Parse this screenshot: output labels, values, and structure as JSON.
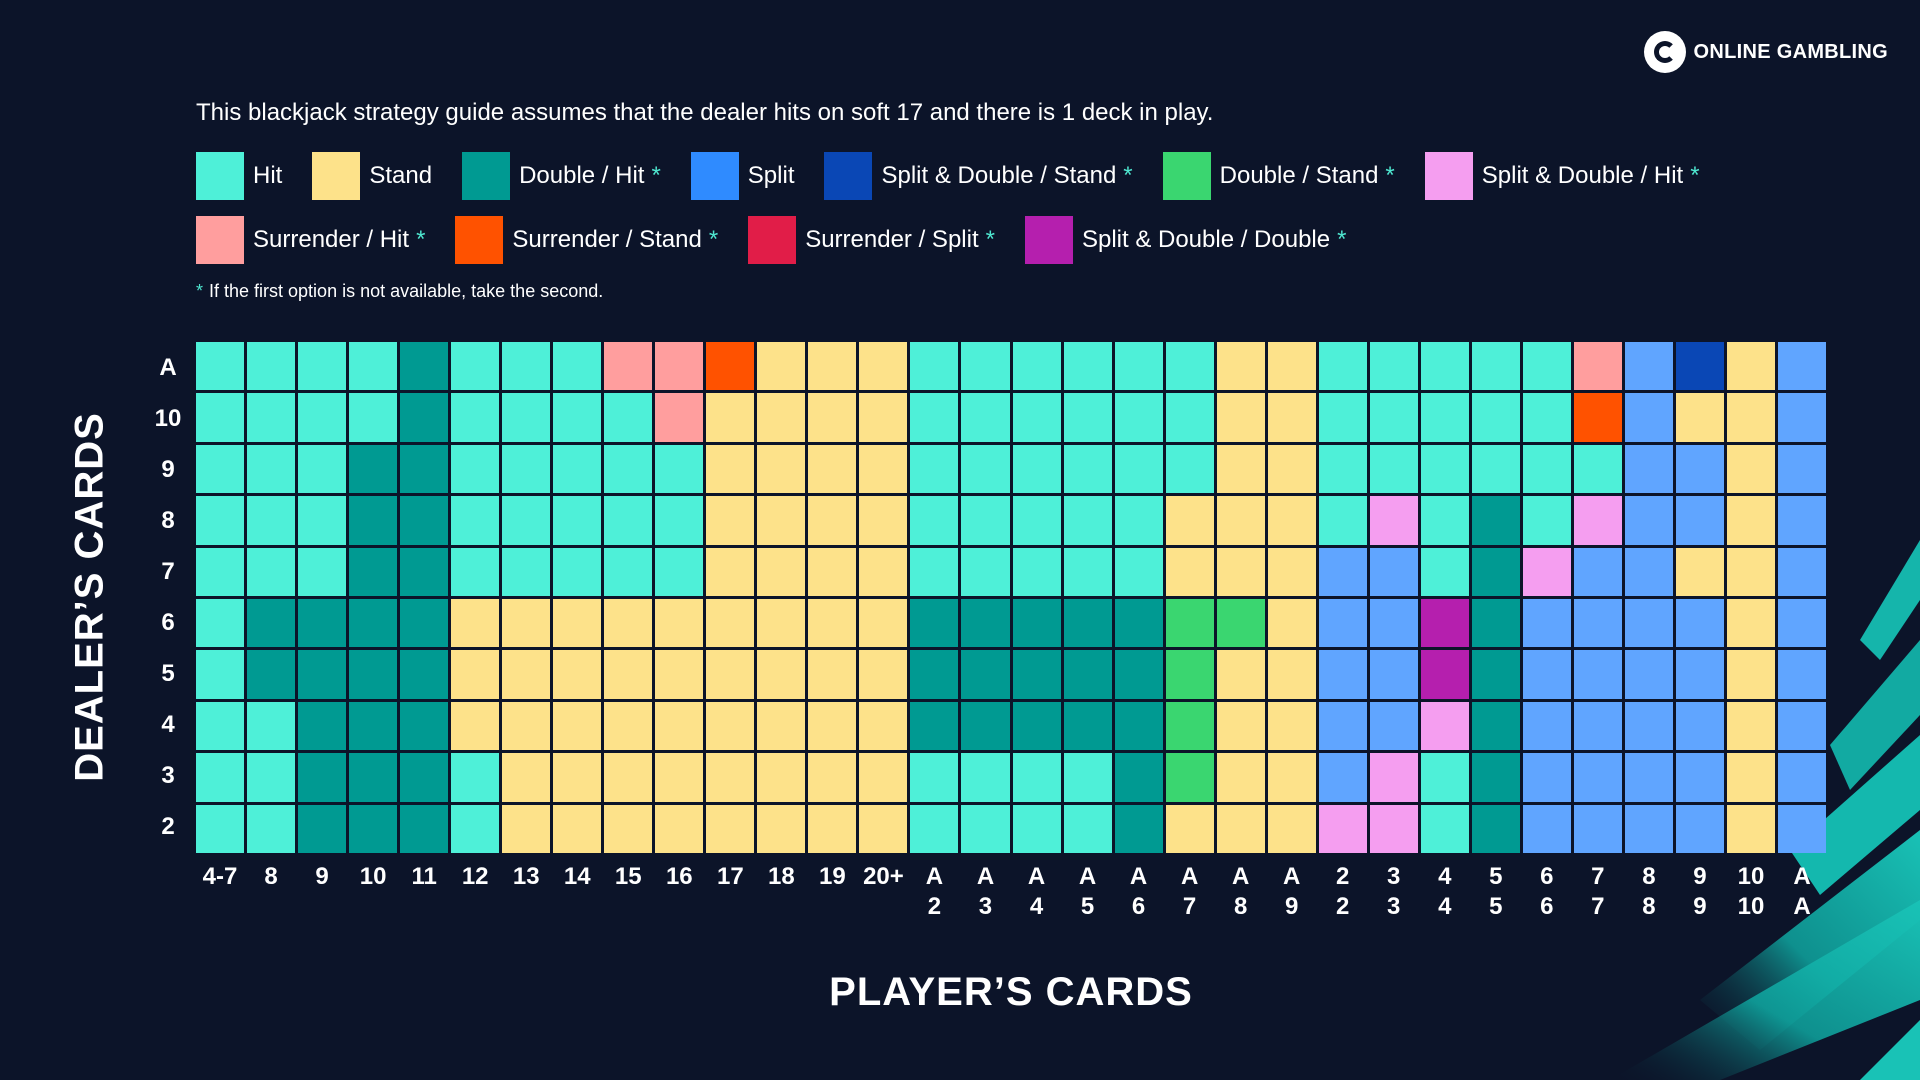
{
  "brand": {
    "name": "ONLINE GAMBLING",
    "icon": "g-logo-icon"
  },
  "intro_text": "This blackjack strategy guide assumes that the dealer hits on soft 17 and there is 1 deck in play.",
  "footnote": {
    "star": "*",
    "text": "If the first option is not available, take the second."
  },
  "legend": [
    {
      "key": "H",
      "label": "Hit",
      "color": "#4ef0d8",
      "asterisk": false
    },
    {
      "key": "S",
      "label": "Stand",
      "color": "#fde28a",
      "asterisk": false
    },
    {
      "key": "D",
      "label": "Double / Hit",
      "color": "#009a92",
      "asterisk": true
    },
    {
      "key": "P",
      "label": "Split",
      "color": "#2f8bff",
      "asterisk": false
    },
    {
      "key": "PS",
      "label": "Split & Double / Stand",
      "color": "#0a47b5",
      "asterisk": true
    },
    {
      "key": "DS",
      "label": "Double / Stand",
      "color": "#3ad670",
      "asterisk": true
    },
    {
      "key": "PH",
      "label": "Split & Double / Hit",
      "color": "#f59ef0",
      "asterisk": true
    },
    {
      "key": "RH",
      "label": "Surrender / Hit",
      "color": "#ff9e9e",
      "asterisk": true
    },
    {
      "key": "RS",
      "label": "Surrender / Stand",
      "color": "#ff5200",
      "asterisk": true
    },
    {
      "key": "RP",
      "label": "Surrender / Split",
      "color": "#e11d48",
      "asterisk": true
    },
    {
      "key": "PD",
      "label": "Split & Double / Double",
      "color": "#b51fae",
      "asterisk": true
    }
  ],
  "chart_data": {
    "type": "heatmap",
    "title": "",
    "xlabel": "PLAYER’S CARDS",
    "ylabel": "DEALER’S CARDS",
    "x_categories": [
      "4-7",
      "8",
      "9",
      "10",
      "11",
      "12",
      "13",
      "14",
      "15",
      "16",
      "17",
      "18",
      "19",
      "20+",
      "A\n2",
      "A\n3",
      "A\n4",
      "A\n5",
      "A\n6",
      "A\n7",
      "A\n8",
      "A\n9",
      "2\n2",
      "3\n3",
      "4\n4",
      "5\n5",
      "6\n6",
      "7\n7",
      "8\n8",
      "9\n9",
      "10\n10",
      "A\nA"
    ],
    "y_categories": [
      "A",
      "10",
      "9",
      "8",
      "7",
      "6",
      "5",
      "4",
      "3",
      "2"
    ],
    "grid_color": "#0c1429",
    "split_color_light": "#60a5ff",
    "values": [
      [
        "H",
        "H",
        "H",
        "H",
        "D",
        "H",
        "H",
        "H",
        "RH",
        "RH",
        "RS",
        "S",
        "S",
        "S",
        "H",
        "H",
        "H",
        "H",
        "H",
        "H",
        "S",
        "S",
        "H",
        "H",
        "H",
        "H",
        "H",
        "RH",
        "P",
        "PS",
        "S",
        "P"
      ],
      [
        "H",
        "H",
        "H",
        "H",
        "D",
        "H",
        "H",
        "H",
        "H",
        "RH",
        "S",
        "S",
        "S",
        "S",
        "H",
        "H",
        "H",
        "H",
        "H",
        "H",
        "S",
        "S",
        "H",
        "H",
        "H",
        "H",
        "H",
        "RS",
        "P",
        "S",
        "S",
        "P"
      ],
      [
        "H",
        "H",
        "H",
        "D",
        "D",
        "H",
        "H",
        "H",
        "H",
        "H",
        "S",
        "S",
        "S",
        "S",
        "H",
        "H",
        "H",
        "H",
        "H",
        "H",
        "S",
        "S",
        "H",
        "H",
        "H",
        "H",
        "H",
        "H",
        "P",
        "P",
        "S",
        "P"
      ],
      [
        "H",
        "H",
        "H",
        "D",
        "D",
        "H",
        "H",
        "H",
        "H",
        "H",
        "S",
        "S",
        "S",
        "S",
        "H",
        "H",
        "H",
        "H",
        "H",
        "S",
        "S",
        "S",
        "H",
        "PH",
        "H",
        "D",
        "H",
        "PH",
        "P",
        "P",
        "S",
        "P"
      ],
      [
        "H",
        "H",
        "H",
        "D",
        "D",
        "H",
        "H",
        "H",
        "H",
        "H",
        "S",
        "S",
        "S",
        "S",
        "H",
        "H",
        "H",
        "H",
        "H",
        "S",
        "S",
        "S",
        "P",
        "P",
        "H",
        "D",
        "PH",
        "P",
        "P",
        "S",
        "S",
        "P"
      ],
      [
        "H",
        "D",
        "D",
        "D",
        "D",
        "S",
        "S",
        "S",
        "S",
        "S",
        "S",
        "S",
        "S",
        "S",
        "D",
        "D",
        "D",
        "D",
        "D",
        "DS",
        "DS",
        "S",
        "P",
        "P",
        "PD",
        "D",
        "P",
        "P",
        "P",
        "P",
        "S",
        "P"
      ],
      [
        "H",
        "D",
        "D",
        "D",
        "D",
        "S",
        "S",
        "S",
        "S",
        "S",
        "S",
        "S",
        "S",
        "S",
        "D",
        "D",
        "D",
        "D",
        "D",
        "DS",
        "S",
        "S",
        "P",
        "P",
        "PD",
        "D",
        "P",
        "P",
        "P",
        "P",
        "S",
        "P"
      ],
      [
        "H",
        "H",
        "D",
        "D",
        "D",
        "S",
        "S",
        "S",
        "S",
        "S",
        "S",
        "S",
        "S",
        "S",
        "D",
        "D",
        "D",
        "D",
        "D",
        "DS",
        "S",
        "S",
        "P",
        "P",
        "PH",
        "D",
        "P",
        "P",
        "P",
        "P",
        "S",
        "P"
      ],
      [
        "H",
        "H",
        "D",
        "D",
        "D",
        "H",
        "S",
        "S",
        "S",
        "S",
        "S",
        "S",
        "S",
        "S",
        "H",
        "H",
        "H",
        "H",
        "D",
        "DS",
        "S",
        "S",
        "P",
        "PH",
        "H",
        "D",
        "P",
        "P",
        "P",
        "P",
        "S",
        "P"
      ],
      [
        "H",
        "H",
        "D",
        "D",
        "D",
        "H",
        "S",
        "S",
        "S",
        "S",
        "S",
        "S",
        "S",
        "S",
        "H",
        "H",
        "H",
        "H",
        "D",
        "S",
        "S",
        "S",
        "PH",
        "PH",
        "H",
        "D",
        "P",
        "P",
        "P",
        "P",
        "S",
        "P"
      ]
    ]
  }
}
